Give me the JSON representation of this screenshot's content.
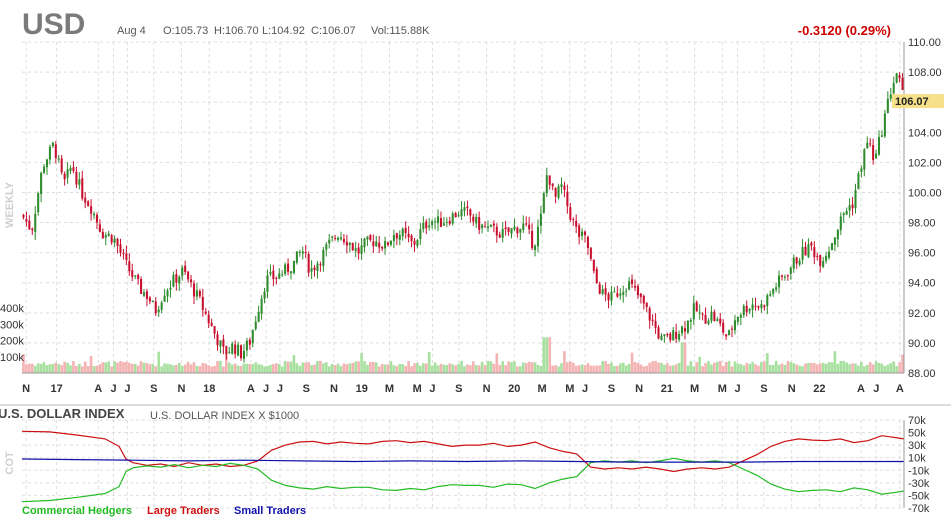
{
  "header": {
    "symbol": "USD",
    "date": "Aug 4",
    "open": "O:105.73",
    "high": "H:106.70",
    "low": "L:104.92",
    "close": "C:106.07",
    "volume": "Vol:115.88K",
    "change": "-0.3120 (0.29%)",
    "last_price": "106.07",
    "period_label": "WEEKLY"
  },
  "colors": {
    "up": "#2e8b2e",
    "down": "#c8102e",
    "vol_up": "#a8e0a0",
    "vol_down": "#f4b4b4",
    "commercial": "#22bb22",
    "large": "#cc1111",
    "small": "#1111aa",
    "last_price_bg": "#f6e08a",
    "grid": "#dddddd"
  },
  "cot_panel": {
    "title": "U.S. DOLLAR INDEX",
    "subtitle": "U.S. DOLLAR INDEX X $1000",
    "side_label": "COT",
    "legend": [
      {
        "label": "Commercial Hedgers",
        "color": "#22bb22"
      },
      {
        "label": "Large Traders",
        "color": "#cc1111"
      },
      {
        "label": "Small Traders",
        "color": "#1111aa"
      }
    ]
  },
  "chart_data": [
    {
      "type": "candlestick",
      "title": "USD",
      "interval": "weekly",
      "ylim": [
        88,
        110
      ],
      "yticks": [
        "88.00",
        "90.00",
        "92.00",
        "94.00",
        "96.00",
        "98.00",
        "100.00",
        "102.00",
        "104.00",
        "106.00",
        "108.00",
        "110.00"
      ],
      "xticks": [
        {
          "label": "N",
          "t": 0.3
        },
        {
          "label": "17",
          "t": 2.5
        },
        {
          "label": "A",
          "t": 5.5
        },
        {
          "label": "J",
          "t": 6.6
        },
        {
          "label": "J",
          "t": 7.6
        },
        {
          "label": "S",
          "t": 9.5
        },
        {
          "label": "N",
          "t": 11.5
        },
        {
          "label": "18",
          "t": 13.5
        },
        {
          "label": "A",
          "t": 16.5
        },
        {
          "label": "J",
          "t": 17.6
        },
        {
          "label": "J",
          "t": 18.6
        },
        {
          "label": "S",
          "t": 20.5
        },
        {
          "label": "N",
          "t": 22.5
        },
        {
          "label": "19",
          "t": 24.5
        },
        {
          "label": "M",
          "t": 26.5
        },
        {
          "label": "M",
          "t": 28.5
        },
        {
          "label": "J",
          "t": 29.6
        },
        {
          "label": "S",
          "t": 31.5
        },
        {
          "label": "N",
          "t": 33.5
        },
        {
          "label": "20",
          "t": 35.5
        },
        {
          "label": "M",
          "t": 37.5
        },
        {
          "label": "M",
          "t": 39.5
        },
        {
          "label": "J",
          "t": 40.6
        },
        {
          "label": "S",
          "t": 42.5
        },
        {
          "label": "N",
          "t": 44.5
        },
        {
          "label": "21",
          "t": 46.5
        },
        {
          "label": "M",
          "t": 48.5
        },
        {
          "label": "M",
          "t": 50.5
        },
        {
          "label": "J",
          "t": 51.6
        },
        {
          "label": "S",
          "t": 53.5
        },
        {
          "label": "N",
          "t": 55.5
        },
        {
          "label": "22",
          "t": 57.5
        },
        {
          "label": "A",
          "t": 60.5
        },
        {
          "label": "J",
          "t": 61.6
        },
        {
          "label": "A",
          "t": 63.3
        }
      ],
      "t_range": [
        0,
        63.6
      ],
      "close_anchors": [
        [
          0,
          98.5
        ],
        [
          0.7,
          97.5
        ],
        [
          1.5,
          101.8
        ],
        [
          2.3,
          103.2
        ],
        [
          3,
          100.5
        ],
        [
          3.6,
          101.8
        ],
        [
          4.3,
          100
        ],
        [
          5,
          99
        ],
        [
          5.8,
          97.3
        ],
        [
          6.6,
          97
        ],
        [
          7.5,
          95.2
        ],
        [
          8.5,
          93.6
        ],
        [
          9.1,
          93.1
        ],
        [
          9.6,
          92.1
        ],
        [
          10.3,
          93.5
        ],
        [
          11,
          94.2
        ],
        [
          11.6,
          94.8
        ],
        [
          12.2,
          93.8
        ],
        [
          12.8,
          92.8
        ],
        [
          13.4,
          91.6
        ],
        [
          14,
          90.4
        ],
        [
          14.6,
          89.3
        ],
        [
          15.2,
          89.8
        ],
        [
          15.8,
          89.3
        ],
        [
          16.4,
          90.0
        ],
        [
          17,
          92.2
        ],
        [
          17.6,
          94.2
        ],
        [
          18.3,
          94.4
        ],
        [
          19,
          94.8
        ],
        [
          19.6,
          95.3
        ],
        [
          20.2,
          96.2
        ],
        [
          20.8,
          94.8
        ],
        [
          21.5,
          95.6
        ],
        [
          22.1,
          96.5
        ],
        [
          22.8,
          97.3
        ],
        [
          23.5,
          96.8
        ],
        [
          24.2,
          96.0
        ],
        [
          24.8,
          96.6
        ],
        [
          25.5,
          96.8
        ],
        [
          26.2,
          96.4
        ],
        [
          26.8,
          97.3
        ],
        [
          27.5,
          97.2
        ],
        [
          28.2,
          96.5
        ],
        [
          28.8,
          97.5
        ],
        [
          29.4,
          98.2
        ],
        [
          30.1,
          98.0
        ],
        [
          30.8,
          98.3
        ],
        [
          31.5,
          98.7
        ],
        [
          32.2,
          98.6
        ],
        [
          32.8,
          97.9
        ],
        [
          33.5,
          97.6
        ],
        [
          34.2,
          97.4
        ],
        [
          34.8,
          97.2
        ],
        [
          35.5,
          97.6
        ],
        [
          36.2,
          97.8
        ],
        [
          36.9,
          96.5
        ],
        [
          37.4,
          98.2
        ],
        [
          37.9,
          101.5
        ],
        [
          38.4,
          99.5
        ],
        [
          38.9,
          100.4
        ],
        [
          39.5,
          98.6
        ],
        [
          40.1,
          97.2
        ],
        [
          40.7,
          96.8
        ],
        [
          41.3,
          94.2
        ],
        [
          41.9,
          93.2
        ],
        [
          42.5,
          93.0
        ],
        [
          43.1,
          93.5
        ],
        [
          43.7,
          94.0
        ],
        [
          44.3,
          93.3
        ],
        [
          44.9,
          92.4
        ],
        [
          45.5,
          91.3
        ],
        [
          46.1,
          90.2
        ],
        [
          46.7,
          90.3
        ],
        [
          47.3,
          90.8
        ],
        [
          47.9,
          91.2
        ],
        [
          48.5,
          92.3
        ],
        [
          49.1,
          91.6
        ],
        [
          49.7,
          91.9
        ],
        [
          50.3,
          91.2
        ],
        [
          50.9,
          90.3
        ],
        [
          51.5,
          91.8
        ],
        [
          52.1,
          92.3
        ],
        [
          52.7,
          92.6
        ],
        [
          53.3,
          92.4
        ],
        [
          53.9,
          93.2
        ],
        [
          54.5,
          94.0
        ],
        [
          55.1,
          94.6
        ],
        [
          55.7,
          95.4
        ],
        [
          56.3,
          96.0
        ],
        [
          56.9,
          96.4
        ],
        [
          57.5,
          95.5
        ],
        [
          58.1,
          96.1
        ],
        [
          58.7,
          97.4
        ],
        [
          59.3,
          98.7
        ],
        [
          59.9,
          99.3
        ],
        [
          60.5,
          101.8
        ],
        [
          61.0,
          103.5
        ],
        [
          61.5,
          102.0
        ],
        [
          62.1,
          104.6
        ],
        [
          62.7,
          107.0
        ],
        [
          63.1,
          108.0
        ],
        [
          63.6,
          106.07
        ]
      ],
      "volume_ylim": [
        0,
        400
      ],
      "volume_ticks": [
        "100k",
        "200k",
        "300k",
        "400k"
      ]
    },
    {
      "type": "line",
      "title": "U.S. DOLLAR INDEX",
      "ylim": [
        -70,
        70
      ],
      "yticks": [
        "-70k",
        "-50k",
        "-30k",
        "-10k",
        "10k",
        "30k",
        "50k",
        "70k"
      ],
      "series": [
        {
          "name": "Large Traders",
          "color": "#cc1111",
          "points": [
            [
              0,
              52
            ],
            [
              2,
              51
            ],
            [
              4,
              46
            ],
            [
              6,
              40
            ],
            [
              7,
              28
            ],
            [
              7.5,
              8
            ],
            [
              8,
              2
            ],
            [
              9,
              -2
            ],
            [
              10,
              0
            ],
            [
              11,
              -4
            ],
            [
              12,
              2
            ],
            [
              13,
              -2
            ],
            [
              14,
              0
            ],
            [
              15,
              -4
            ],
            [
              16,
              -2
            ],
            [
              17,
              5
            ],
            [
              18,
              22
            ],
            [
              19,
              30
            ],
            [
              20,
              35
            ],
            [
              21,
              36
            ],
            [
              22,
              32
            ],
            [
              23,
              35
            ],
            [
              24,
              33
            ],
            [
              25,
              32
            ],
            [
              26,
              36
            ],
            [
              27,
              37
            ],
            [
              28,
              34
            ],
            [
              29,
              36
            ],
            [
              30,
              32
            ],
            [
              31,
              28
            ],
            [
              32,
              30
            ],
            [
              33,
              30
            ],
            [
              34,
              33
            ],
            [
              35,
              28
            ],
            [
              36,
              30
            ],
            [
              37,
              35
            ],
            [
              38,
              26
            ],
            [
              39,
              20
            ],
            [
              40,
              16
            ],
            [
              41,
              -5
            ],
            [
              42,
              -8
            ],
            [
              43,
              -6
            ],
            [
              44,
              -8
            ],
            [
              45,
              -5
            ],
            [
              46,
              -8
            ],
            [
              47,
              -12
            ],
            [
              48,
              -8
            ],
            [
              49,
              -6
            ],
            [
              50,
              -8
            ],
            [
              51,
              -5
            ],
            [
              52,
              5
            ],
            [
              53,
              15
            ],
            [
              54,
              28
            ],
            [
              55,
              36
            ],
            [
              56,
              40
            ],
            [
              57,
              38
            ],
            [
              58,
              37
            ],
            [
              59,
              40
            ],
            [
              60,
              34
            ],
            [
              61,
              37
            ],
            [
              62,
              45
            ],
            [
              63,
              42
            ],
            [
              63.6,
              40
            ]
          ]
        },
        {
          "name": "Commercial Hedgers",
          "color": "#22bb22",
          "points": [
            [
              0,
              -60
            ],
            [
              2,
              -58
            ],
            [
              4,
              -53
            ],
            [
              6,
              -47
            ],
            [
              7,
              -36
            ],
            [
              7.5,
              -12
            ],
            [
              8,
              -6
            ],
            [
              9,
              -3
            ],
            [
              10,
              -5
            ],
            [
              11,
              -1
            ],
            [
              12,
              -6
            ],
            [
              13,
              -2
            ],
            [
              14,
              -4
            ],
            [
              15,
              1
            ],
            [
              16,
              -2
            ],
            [
              17,
              -8
            ],
            [
              18,
              -26
            ],
            [
              19,
              -34
            ],
            [
              20,
              -38
            ],
            [
              21,
              -40
            ],
            [
              22,
              -36
            ],
            [
              23,
              -39
            ],
            [
              24,
              -37
            ],
            [
              25,
              -37
            ],
            [
              26,
              -41
            ],
            [
              27,
              -42
            ],
            [
              28,
              -39
            ],
            [
              29,
              -41
            ],
            [
              30,
              -36
            ],
            [
              31,
              -33
            ],
            [
              32,
              -34
            ],
            [
              33,
              -34
            ],
            [
              34,
              -37
            ],
            [
              35,
              -32
            ],
            [
              36,
              -33
            ],
            [
              37,
              -39
            ],
            [
              38,
              -30
            ],
            [
              39,
              -24
            ],
            [
              40,
              -20
            ],
            [
              41,
              2
            ],
            [
              42,
              5
            ],
            [
              43,
              3
            ],
            [
              44,
              5
            ],
            [
              45,
              2
            ],
            [
              46,
              5
            ],
            [
              47,
              9
            ],
            [
              48,
              5
            ],
            [
              49,
              3
            ],
            [
              50,
              5
            ],
            [
              51,
              2
            ],
            [
              52,
              -8
            ],
            [
              53,
              -18
            ],
            [
              54,
              -32
            ],
            [
              55,
              -40
            ],
            [
              56,
              -44
            ],
            [
              57,
              -42
            ],
            [
              58,
              -41
            ],
            [
              59,
              -44
            ],
            [
              60,
              -38
            ],
            [
              61,
              -41
            ],
            [
              62,
              -48
            ],
            [
              63,
              -45
            ],
            [
              63.6,
              -43
            ]
          ]
        },
        {
          "name": "Small Traders",
          "color": "#1111aa",
          "points": [
            [
              0,
              8
            ],
            [
              4,
              7
            ],
            [
              8,
              6
            ],
            [
              12,
              5
            ],
            [
              16,
              6
            ],
            [
              20,
              5
            ],
            [
              24,
              4
            ],
            [
              28,
              5
            ],
            [
              32,
              4
            ],
            [
              36,
              5
            ],
            [
              40,
              4
            ],
            [
              44,
              3
            ],
            [
              48,
              3
            ],
            [
              52,
              3
            ],
            [
              56,
              4
            ],
            [
              60,
              4
            ],
            [
              63.6,
              4
            ]
          ]
        }
      ]
    }
  ]
}
